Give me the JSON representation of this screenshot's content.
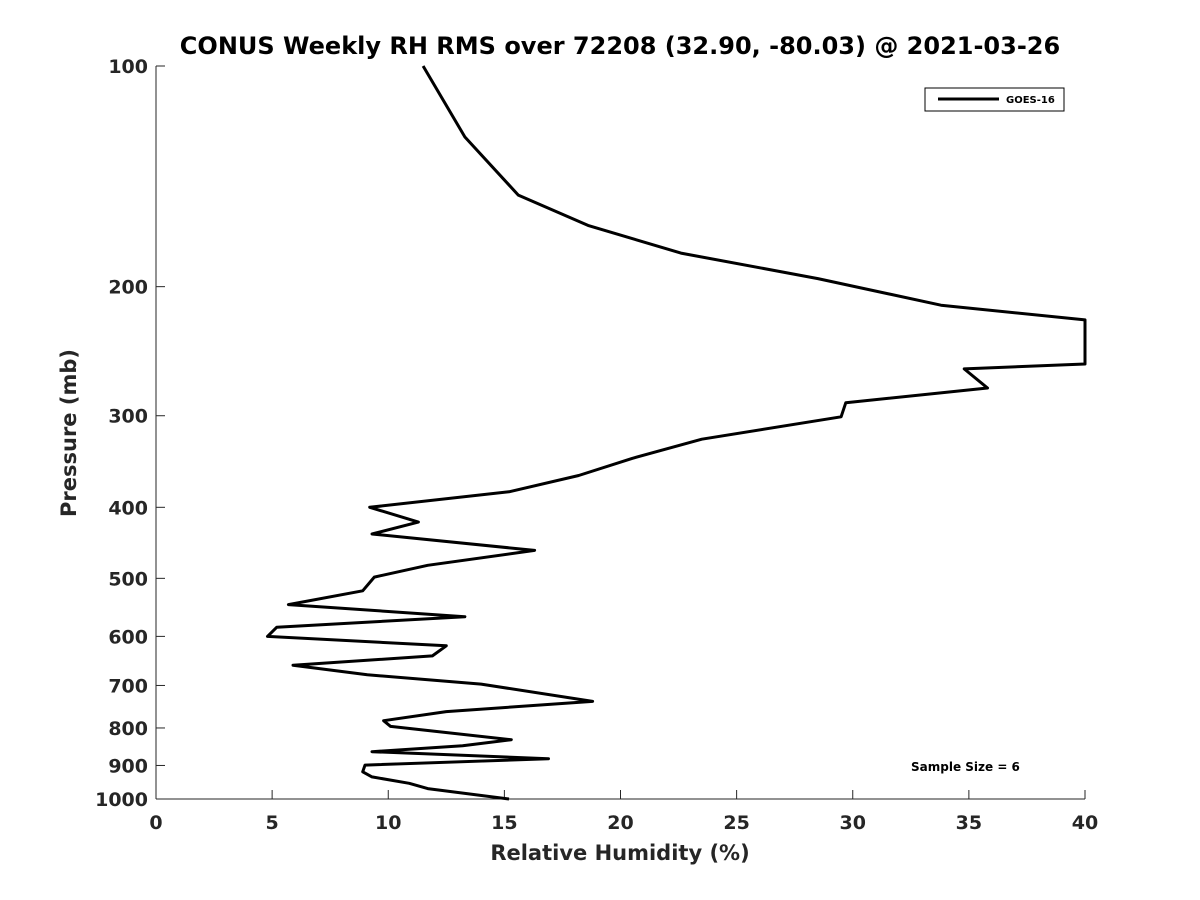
{
  "chart_data": {
    "type": "line",
    "title": "CONUS Weekly RH RMS over 72208 (32.90, -80.03) @ 2021-03-26",
    "xlabel": "Relative Humidity (%)",
    "ylabel": "Pressure (mb)",
    "xlim": [
      0,
      40
    ],
    "ylim": [
      100,
      1000
    ],
    "y_scale": "log",
    "y_reversed": true,
    "x_ticks": [
      0,
      5,
      10,
      15,
      20,
      25,
      30,
      35,
      40
    ],
    "y_ticks": [
      100,
      200,
      300,
      400,
      500,
      600,
      700,
      800,
      900,
      1000
    ],
    "grid": false,
    "legend_position": "top-right",
    "series": [
      {
        "name": "GOES-16",
        "color": "#000000",
        "points": [
          [
            11.5,
            100
          ],
          [
            13.3,
            125
          ],
          [
            15.6,
            150
          ],
          [
            18.6,
            165
          ],
          [
            22.6,
            180
          ],
          [
            28.5,
            195
          ],
          [
            33.8,
            212
          ],
          [
            40.0,
            222
          ],
          [
            40.0,
            255
          ],
          [
            34.8,
            259
          ],
          [
            35.8,
            275
          ],
          [
            29.7,
            288
          ],
          [
            29.5,
            301
          ],
          [
            23.5,
            323
          ],
          [
            20.5,
            343
          ],
          [
            18.2,
            362
          ],
          [
            15.2,
            381
          ],
          [
            9.2,
            400
          ],
          [
            11.3,
            419
          ],
          [
            9.3,
            435
          ],
          [
            16.3,
            458
          ],
          [
            11.7,
            480
          ],
          [
            9.4,
            498
          ],
          [
            8.9,
            520
          ],
          [
            5.7,
            543
          ],
          [
            13.3,
            564
          ],
          [
            5.2,
            583
          ],
          [
            4.8,
            600
          ],
          [
            12.5,
            618
          ],
          [
            11.9,
            638
          ],
          [
            5.9,
            657
          ],
          [
            9.1,
            677
          ],
          [
            14.0,
            697
          ],
          [
            18.8,
            736
          ],
          [
            12.5,
            760
          ],
          [
            9.8,
            782
          ],
          [
            10.1,
            796
          ],
          [
            15.3,
            830
          ],
          [
            13.2,
            846
          ],
          [
            9.3,
            862
          ],
          [
            16.9,
            881
          ],
          [
            9.0,
            899
          ],
          [
            8.9,
            918
          ],
          [
            9.3,
            933
          ],
          [
            10.9,
            952
          ],
          [
            11.7,
            968
          ],
          [
            15.2,
            1000
          ]
        ]
      }
    ],
    "annotations": [
      "Sample Size = 6"
    ]
  }
}
